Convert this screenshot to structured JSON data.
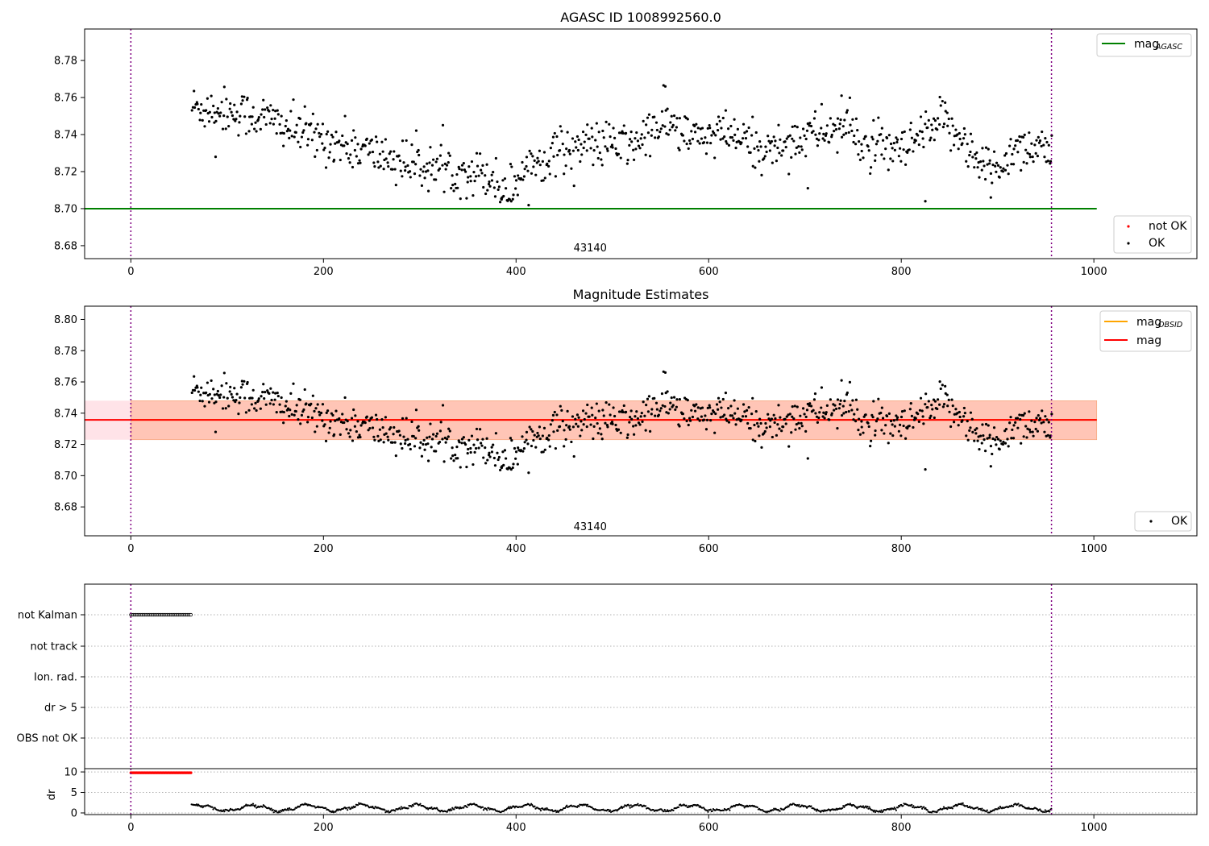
{
  "figure": {
    "background": "#ffffff"
  },
  "colors": {
    "black": "#000000",
    "green": "#008000",
    "orange": "#ffa500",
    "red": "#ff0000",
    "purple": "#800080",
    "band_orange": "#ffa07a",
    "band_pink": "#ffc0cb",
    "grid": "#b0b0b0"
  },
  "chart_data": [
    {
      "id": "agasc",
      "type": "scatter",
      "title": "AGASC ID 1008992560.0",
      "xlim": [
        -48,
        1107
      ],
      "ylim": [
        8.673,
        8.797
      ],
      "x_ticks": [
        0,
        200,
        400,
        600,
        800,
        1000
      ],
      "y_ticks": [
        8.68,
        8.7,
        8.72,
        8.74,
        8.76,
        8.78
      ],
      "annotation": "43140",
      "annotation_x": 477,
      "annotation_y": 8.677,
      "vlines": [
        0,
        956
      ],
      "mag_agasc": 8.7,
      "mag_agasc_x": [
        -48,
        1003
      ],
      "scatter_x_range": [
        63,
        956
      ],
      "legend_top": {
        "main": "mag",
        "sub": "AGASC"
      },
      "legend_bottom": [
        {
          "label": "not OK",
          "color": "#ff0000"
        },
        {
          "label": "OK",
          "color": "#000000"
        }
      ],
      "series_profile": [
        [
          63,
          8.755
        ],
        [
          100,
          8.753
        ],
        [
          140,
          8.749
        ],
        [
          170,
          8.742
        ],
        [
          210,
          8.736
        ],
        [
          250,
          8.73
        ],
        [
          290,
          8.724
        ],
        [
          330,
          8.721
        ],
        [
          370,
          8.719
        ],
        [
          390,
          8.709
        ],
        [
          410,
          8.722
        ],
        [
          440,
          8.731
        ],
        [
          480,
          8.735
        ],
        [
          520,
          8.734
        ],
        [
          555,
          8.747
        ],
        [
          580,
          8.738
        ],
        [
          620,
          8.74
        ],
        [
          660,
          8.731
        ],
        [
          690,
          8.738
        ],
        [
          720,
          8.742
        ],
        [
          745,
          8.744
        ],
        [
          760,
          8.734
        ],
        [
          800,
          8.73
        ],
        [
          820,
          8.738
        ],
        [
          845,
          8.747
        ],
        [
          865,
          8.738
        ],
        [
          880,
          8.723
        ],
        [
          900,
          8.722
        ],
        [
          920,
          8.734
        ],
        [
          956,
          8.733
        ]
      ],
      "outliers": [
        [
          88,
          8.728
        ],
        [
          385,
          8.705
        ],
        [
          395,
          8.704
        ],
        [
          703,
          8.711
        ],
        [
          825,
          8.704
        ],
        [
          893,
          8.706
        ],
        [
          555,
          8.766
        ],
        [
          738,
          8.761
        ]
      ]
    },
    {
      "id": "estimates",
      "type": "scatter",
      "title": "Magnitude Estimates",
      "xlim": [
        -48,
        1107
      ],
      "ylim": [
        8.6615,
        8.8085
      ],
      "x_ticks": [
        0,
        200,
        400,
        600,
        800,
        1000
      ],
      "y_ticks": [
        8.68,
        8.7,
        8.72,
        8.74,
        8.76,
        8.78,
        8.8
      ],
      "annotation": "43140",
      "annotation_x": 477,
      "annotation_y": 8.665,
      "vlines": [
        0,
        956
      ],
      "mag": 8.7357,
      "mag_x": [
        -48,
        1003
      ],
      "band": [
        8.723,
        8.748
      ],
      "band_x_pink": [
        -48,
        1003
      ],
      "band_x_orange": [
        0,
        1003
      ],
      "mag_obsid": 8.7357,
      "mag_obsid_x": [
        0,
        1003
      ],
      "legend_top": [
        {
          "main": "mag",
          "sub": "OBSID",
          "color": "#ffa500"
        },
        {
          "main": "mag",
          "sub": "",
          "color": "#ff0000"
        }
      ],
      "legend_bottom": [
        {
          "label": "OK",
          "color": "#000000"
        }
      ]
    },
    {
      "id": "flags",
      "type": "scatter",
      "xlim": [
        -48,
        1107
      ],
      "categories": [
        "not Kalman",
        "not track",
        "Ion. rad.",
        "dr > 5",
        "OBS not OK"
      ],
      "x_ticks": [
        0,
        200,
        400,
        600,
        800,
        1000
      ],
      "vlines": [
        0,
        956
      ],
      "not_kalman_x_range": [
        0,
        63
      ]
    },
    {
      "id": "dr",
      "type": "scatter",
      "ylabel": "dr",
      "xlim": [
        -48,
        1107
      ],
      "ylim": [
        -0.4,
        10.8
      ],
      "y_ticks": [
        0,
        5,
        10
      ],
      "x_ticks": [
        0,
        200,
        400,
        600,
        800,
        1000
      ],
      "vlines": [
        0,
        956
      ],
      "red_dots_y": 9.8,
      "red_dots_x_range": [
        0,
        63
      ],
      "black_dots_x_range": [
        63,
        956
      ],
      "black_dots_base": 1.2
    }
  ]
}
